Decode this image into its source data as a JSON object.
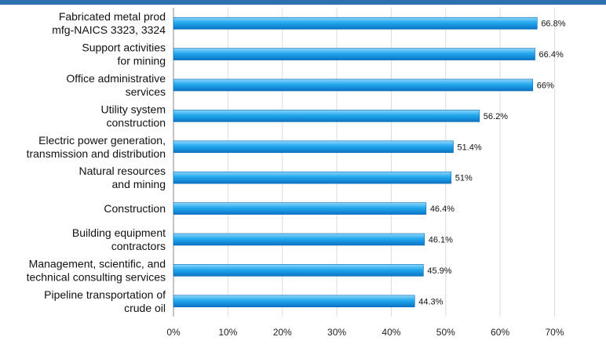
{
  "chart_data": {
    "type": "bar",
    "orientation": "horizontal",
    "title": "",
    "xlabel": "",
    "ylabel": "",
    "categories": [
      [
        "Fabricated metal prod",
        "mfg-NAICS 3323, 3324"
      ],
      [
        "Support activities",
        "for mining"
      ],
      [
        "Office administrative",
        "services"
      ],
      [
        "Utility system",
        "construction"
      ],
      [
        "Electric power generation,",
        "transmission and distribution"
      ],
      [
        "Natural resources",
        "and mining"
      ],
      [
        "Construction"
      ],
      [
        "Building equipment",
        "contractors"
      ],
      [
        "Management, scientific, and",
        "technical consulting services"
      ],
      [
        "Pipeline transportation of",
        "crude oil"
      ]
    ],
    "values": [
      66.8,
      66.4,
      66,
      56.2,
      51.4,
      51,
      46.4,
      46.1,
      45.9,
      44.3
    ],
    "value_labels": [
      "66.8%",
      "66.4%",
      "66%",
      "56.2%",
      "51.4%",
      "51%",
      "46.4%",
      "46.1%",
      "45.9%",
      "44.3%"
    ],
    "xlim": [
      0,
      78
    ],
    "x_ticks": [
      0,
      10,
      20,
      30,
      40,
      50,
      60,
      70
    ],
    "x_tick_labels": [
      "0%",
      "10%",
      "20%",
      "30%",
      "40%",
      "50%",
      "60%",
      "70%"
    ],
    "grid": true,
    "bar_color": "#1fa4ea"
  }
}
